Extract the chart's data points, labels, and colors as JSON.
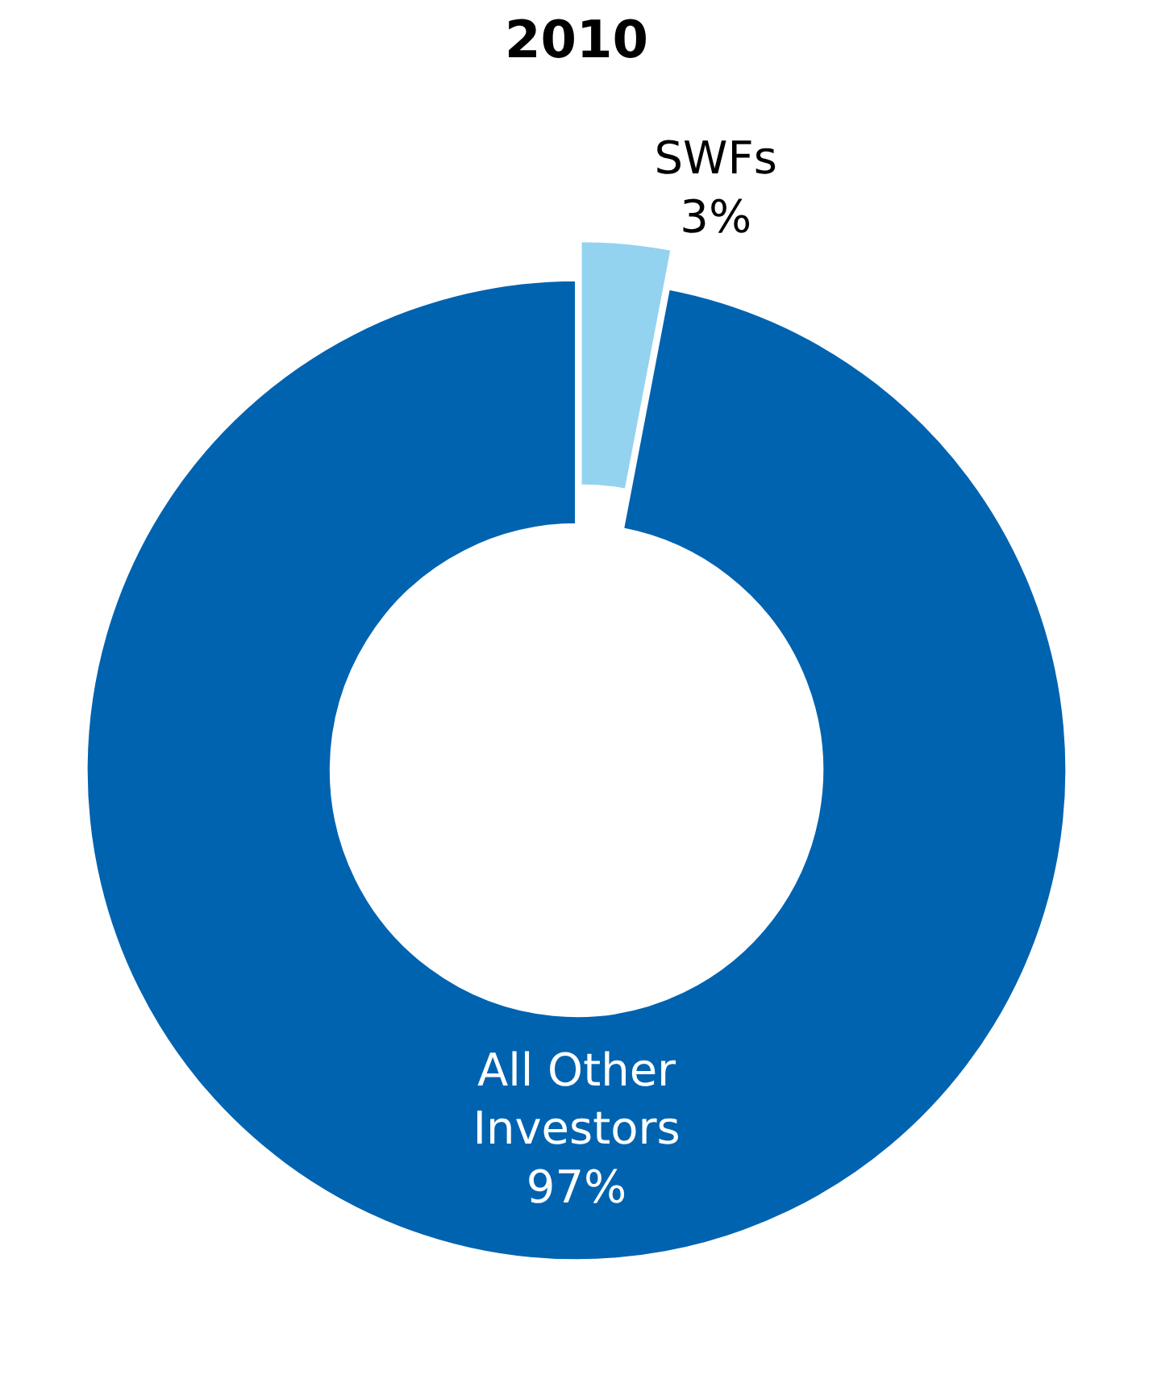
{
  "chart_data": {
    "type": "donut",
    "title": "2010",
    "categories": [
      "SWFs",
      "All Other Investors"
    ],
    "values": [
      3,
      97
    ],
    "value_labels": [
      "3%",
      "97%"
    ],
    "colors": [
      "#93d3f0",
      "#0063b0"
    ],
    "legend": false
  }
}
